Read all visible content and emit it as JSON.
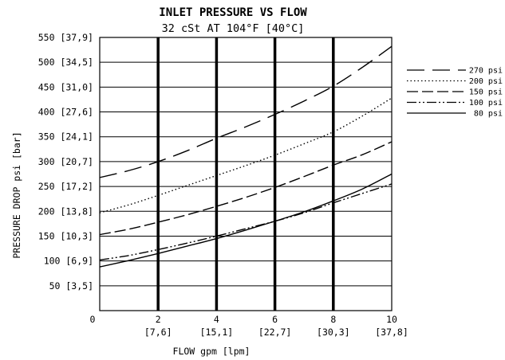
{
  "chart_data": {
    "type": "line",
    "title": "INLET PRESSURE VS FLOW",
    "subtitle": "32 cSt AT 104°F [40°C]",
    "xlabel": "FLOW gpm [lpm]",
    "ylabel": "PRESSURE DROP psi [bar]",
    "xlim": [
      0,
      10
    ],
    "ylim": [
      0,
      550
    ],
    "x_ticks": [
      {
        "value": 0,
        "label": "0",
        "sub": ""
      },
      {
        "value": 2,
        "label": "2",
        "sub": "[7,6]"
      },
      {
        "value": 4,
        "label": "4",
        "sub": "[15,1]"
      },
      {
        "value": 6,
        "label": "6",
        "sub": "[22,7]"
      },
      {
        "value": 8,
        "label": "8",
        "sub": "[30,3]"
      },
      {
        "value": 10,
        "label": "10",
        "sub": "[37,8]"
      }
    ],
    "y_ticks": [
      {
        "value": 50,
        "label": "50 [3,5]"
      },
      {
        "value": 100,
        "label": "100 [6,9]"
      },
      {
        "value": 150,
        "label": "150 [10,3]"
      },
      {
        "value": 200,
        "label": "200 [13,8]"
      },
      {
        "value": 250,
        "label": "250 [17,2]"
      },
      {
        "value": 300,
        "label": "300 [20,7]"
      },
      {
        "value": 350,
        "label": "350 [24,1]"
      },
      {
        "value": 400,
        "label": "400 [27,6]"
      },
      {
        "value": 450,
        "label": "450 [31,0]"
      },
      {
        "value": 500,
        "label": "500 [34,5]"
      },
      {
        "value": 550,
        "label": "550 [37,9]"
      }
    ],
    "grid": true,
    "legend_position": "right",
    "series": [
      {
        "name": "270 psi",
        "dash": "long-dash",
        "x": [
          0,
          1,
          2,
          3,
          4,
          5,
          6,
          7,
          8,
          9,
          10
        ],
        "y": [
          268,
          282,
          300,
          322,
          347,
          370,
          395,
          422,
          452,
          490,
          532
        ]
      },
      {
        "name": "200 psi",
        "dash": "dotted",
        "x": [
          0,
          1,
          2,
          3,
          4,
          5,
          6,
          7,
          8,
          9,
          10
        ],
        "y": [
          197,
          213,
          232,
          252,
          272,
          292,
          313,
          336,
          360,
          392,
          428
        ]
      },
      {
        "name": "150 psi",
        "dash": "dash",
        "x": [
          0,
          1,
          2,
          3,
          4,
          5,
          6,
          7,
          8,
          9,
          10
        ],
        "y": [
          153,
          164,
          178,
          193,
          210,
          228,
          248,
          270,
          293,
          314,
          340
        ]
      },
      {
        "name": "100 psi",
        "dash": "dash-dot-dot",
        "x": [
          0,
          1,
          2,
          3,
          4,
          5,
          6,
          7,
          8,
          9,
          10
        ],
        "y": [
          102,
          111,
          123,
          136,
          150,
          165,
          180,
          197,
          217,
          236,
          255
        ]
      },
      {
        "name": "80 psi",
        "dash": "solid",
        "x": [
          0,
          1,
          2,
          3,
          4,
          5,
          6,
          7,
          8,
          9,
          10
        ],
        "y": [
          88,
          101,
          115,
          130,
          145,
          162,
          180,
          199,
          221,
          245,
          275
        ]
      }
    ]
  }
}
